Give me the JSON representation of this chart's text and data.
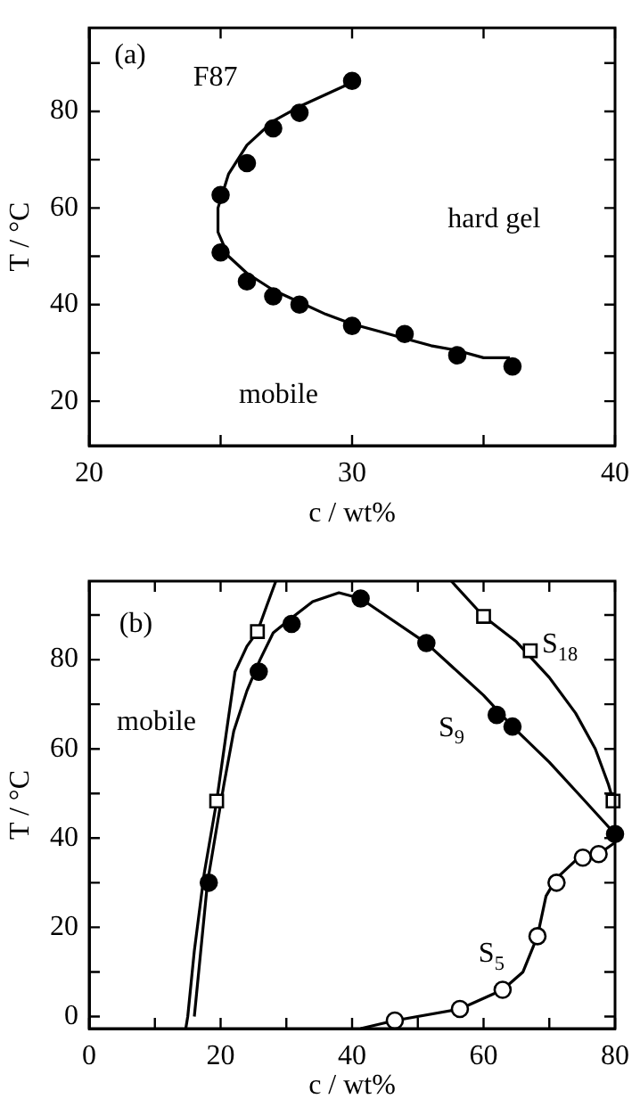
{
  "chart_data": [
    {
      "type": "scatter",
      "xlabel": "c / wt%",
      "ylabel": "T / °C",
      "xlim": [
        20,
        40
      ],
      "ylim": [
        10.8,
        97.3
      ],
      "xticks": [
        20,
        {
          "value": 25,
          "label": null
        },
        30,
        {
          "value": 35,
          "label": null
        },
        40
      ],
      "yticks": [
        20,
        {
          "value": 30,
          "label": null
        },
        40,
        {
          "value": 50,
          "label": null
        },
        60,
        {
          "value": 70,
          "label": null
        },
        80,
        {
          "value": 90,
          "label": null
        }
      ],
      "grid": false,
      "annotations": [
        "(a)",
        "F87",
        "hard gel",
        "mobile"
      ],
      "series": [
        {
          "type": "scatter",
          "marker": "circle",
          "color": "#000000",
          "x": [
            30,
            28,
            27,
            26,
            25,
            25,
            26,
            27,
            28,
            30,
            32,
            34,
            36.1
          ],
          "values": [
            86.3,
            79.7,
            76.5,
            69.3,
            62.7,
            50.8,
            44.8,
            41.7,
            40,
            35.6,
            33.9,
            29.5,
            27.2
          ]
        },
        {
          "type": "line",
          "marker": "none",
          "color": "#000000",
          "x": [
            30,
            29,
            28,
            27,
            26,
            25.3,
            24.9,
            24.9,
            25.3,
            26,
            27,
            28,
            29,
            30,
            31,
            32,
            33,
            34,
            35,
            36
          ],
          "values": [
            86,
            83.5,
            81,
            78,
            73,
            67,
            60,
            55,
            50,
            46.5,
            43,
            40.5,
            38,
            36,
            34.5,
            33,
            31.5,
            30.5,
            29,
            29
          ]
        }
      ]
    },
    {
      "type": "scatter",
      "xlabel": "c / wt%",
      "ylabel": "T / °C",
      "xlim": [
        0,
        80
      ],
      "ylim": [
        -2.7,
        97.6
      ],
      "xticks": [
        0,
        {
          "value": 10,
          "label": null
        },
        20,
        {
          "value": 30,
          "label": null
        },
        40,
        {
          "value": 50,
          "label": null
        },
        60,
        {
          "value": 70,
          "label": null
        },
        80
      ],
      "yticks": [
        0,
        {
          "value": 10,
          "label": null
        },
        20,
        {
          "value": 30,
          "label": null
        },
        40,
        {
          "value": 50,
          "label": null
        },
        60,
        {
          "value": 70,
          "label": null
        },
        80,
        {
          "value": 90,
          "label": null
        }
      ],
      "grid": false,
      "annotations": [
        "(b)",
        "mobile",
        "S$_{18}$",
        "S$_{9}$",
        "S$_{5}$"
      ],
      "series": [
        {
          "type": "line",
          "marker": "none",
          "color": "#000000",
          "x": [
            14.7,
            15,
            16,
            17.5,
            19.4,
            21,
            22.2,
            24,
            25.6,
            27,
            28.4
          ],
          "values": [
            -2.7,
            0,
            14.7,
            32,
            48.3,
            65,
            77.3,
            83,
            86.3,
            92,
            97.6
          ]
        },
        {
          "type": "line",
          "marker": "none",
          "color": "#000000",
          "x": [
            55.1,
            60,
            65,
            70,
            74,
            77,
            79,
            80
          ],
          "values": [
            97.6,
            89.7,
            84,
            76,
            68,
            60,
            52,
            47
          ]
        },
        {
          "type": "line",
          "marker": "none",
          "color": "#000000",
          "x": [
            16,
            17,
            18,
            20.5,
            22,
            24,
            26,
            28,
            30.5,
            34,
            38,
            41.3,
            51.3,
            60,
            64.4,
            70,
            75,
            80
          ],
          "values": [
            0,
            15,
            30,
            52,
            64,
            73,
            80,
            86,
            89,
            93,
            95,
            93.7,
            83.7,
            72,
            65,
            57,
            49,
            40.9
          ]
        },
        {
          "type": "line",
          "marker": "none",
          "color": "#000000",
          "x": [
            41.3,
            46.5,
            56.4,
            62.9,
            66,
            68.2,
            69.5,
            71.1,
            74,
            77.5,
            80
          ],
          "values": [
            -2.7,
            -0.9,
            1.7,
            6,
            10,
            18,
            27,
            31,
            35,
            36.4,
            39
          ]
        },
        {
          "type": "scatter",
          "marker": "square",
          "color": "#ffffff",
          "x": [
            19.4,
            25.6,
            60,
            67.1,
            79.7
          ],
          "values": [
            48.3,
            86.3,
            89.7,
            82,
            48.3
          ]
        },
        {
          "type": "scatter",
          "marker": "circle",
          "color": "#000000",
          "x": [
            18.2,
            25.8,
            30.8,
            41.3,
            51.3,
            62,
            64.4,
            80
          ],
          "values": [
            30,
            77.3,
            88,
            93.7,
            83.7,
            67.6,
            65,
            40.9
          ]
        },
        {
          "type": "scatter",
          "marker": "circle",
          "color": "#ffffff",
          "x": [
            46.5,
            56.4,
            62.9,
            68.2,
            71.1,
            75.1,
            77.5
          ],
          "values": [
            -0.9,
            1.7,
            6,
            18,
            30,
            35.6,
            36.4
          ]
        }
      ]
    }
  ]
}
